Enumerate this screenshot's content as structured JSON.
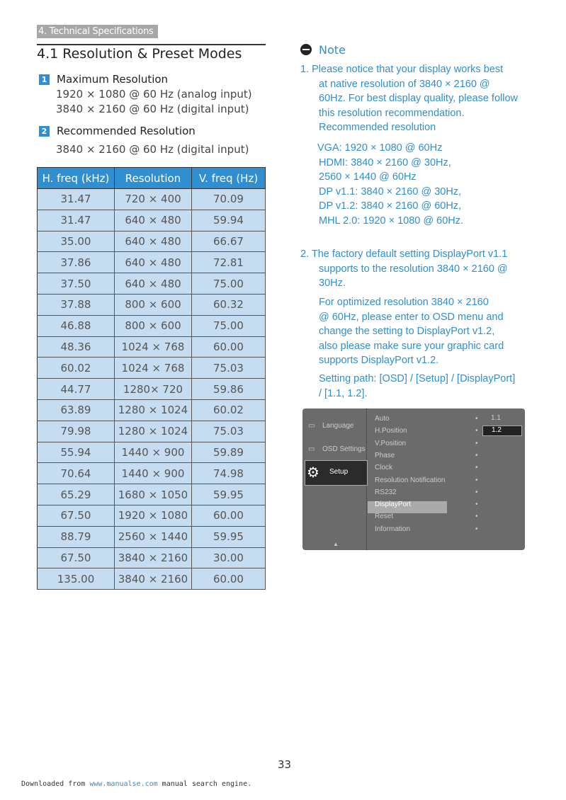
{
  "breadcrumb": "4. Technical Specifications",
  "title": "4.1  Resolution & Preset Modes",
  "sections": [
    {
      "num": "1",
      "heading": "Maximum Resolution",
      "lines": [
        "1920 × 1080 @ 60 Hz (analog input)",
        "3840 × 2160 @ 60 Hz (digital input)"
      ]
    },
    {
      "num": "2",
      "heading": "Recommended Resolution",
      "lines": [
        "3840 × 2160 @ 60 Hz (digital input)"
      ]
    }
  ],
  "table": {
    "headers": [
      "H. freq (kHz)",
      "Resolution",
      "V. freq (Hz)"
    ],
    "rows": [
      [
        "31.47",
        "720 × 400",
        "70.09"
      ],
      [
        "31.47",
        "640 × 480",
        "59.94"
      ],
      [
        "35.00",
        "640 × 480",
        "66.67"
      ],
      [
        "37.86",
        "640 × 480",
        "72.81"
      ],
      [
        "37.50",
        "640 × 480",
        "75.00"
      ],
      [
        "37.88",
        "800 × 600",
        "60.32"
      ],
      [
        "46.88",
        "800 × 600",
        "75.00"
      ],
      [
        "48.36",
        "1024 × 768",
        "60.00"
      ],
      [
        "60.02",
        "1024 × 768",
        "75.03"
      ],
      [
        "44.77",
        "1280× 720",
        "59.86"
      ],
      [
        "63.89",
        "1280 × 1024",
        "60.02"
      ],
      [
        "79.98",
        "1280 × 1024",
        "75.03"
      ],
      [
        "55.94",
        "1440 × 900",
        "59.89"
      ],
      [
        "70.64",
        "1440 × 900",
        "74.98"
      ],
      [
        "65.29",
        "1680 × 1050",
        "59.95"
      ],
      [
        "67.50",
        "1920 × 1080",
        "60.00"
      ],
      [
        "88.79",
        "2560 × 1440",
        "59.95"
      ],
      [
        "67.50",
        "3840 × 2160",
        "30.00"
      ],
      [
        "135.00",
        "3840 × 2160",
        "60.00"
      ]
    ]
  },
  "note": {
    "label": "Note",
    "item1": [
      "1.  Please notice that your display works best",
      "at native resolution of 3840 × 2160 @",
      "60Hz. For best display quality, please follow",
      "this resolution recommendation.",
      "Recommended resolution"
    ],
    "modes": [
      "VGA: 1920 × 1080 @ 60Hz",
      "HDMI: 3840 × 2160 @ 30Hz,",
      "2560 × 1440 @ 60Hz",
      "DP v1.1: 3840 × 2160 @ 30Hz,",
      "DP v1.2: 3840 × 2160 @ 60Hz,",
      "MHL 2.0: 1920 × 1080 @ 60Hz."
    ],
    "item2": [
      "2.  The factory default setting DisplayPort v1.1",
      "supports to the resolution 3840 × 2160 @",
      "30Hz."
    ],
    "item2b": [
      "For optimized resolution 3840 × 2160",
      "@ 60Hz, please enter to OSD menu and",
      "change the setting to DisplayPort v1.2,",
      "also please make sure your graphic card",
      "supports DisplayPort v1.2."
    ],
    "item2c": [
      "Setting path: [OSD] / [Setup] / [DisplayPort]",
      "/ [1.1, 1.2]."
    ]
  },
  "osd": {
    "left": [
      "Language",
      "OSD Settings",
      "Setup"
    ],
    "menu": [
      "Auto",
      "H.Position",
      "V.Position",
      "Phase",
      "Clock",
      "Resolution Notification",
      "RS232",
      "DisplayPort",
      "Reset",
      "Information"
    ],
    "options": [
      "1.1",
      "1.2"
    ]
  },
  "page_number": "33",
  "footer": {
    "pre": "Downloaded from ",
    "link": "www.manualse.com",
    "post": " manual search engine."
  }
}
